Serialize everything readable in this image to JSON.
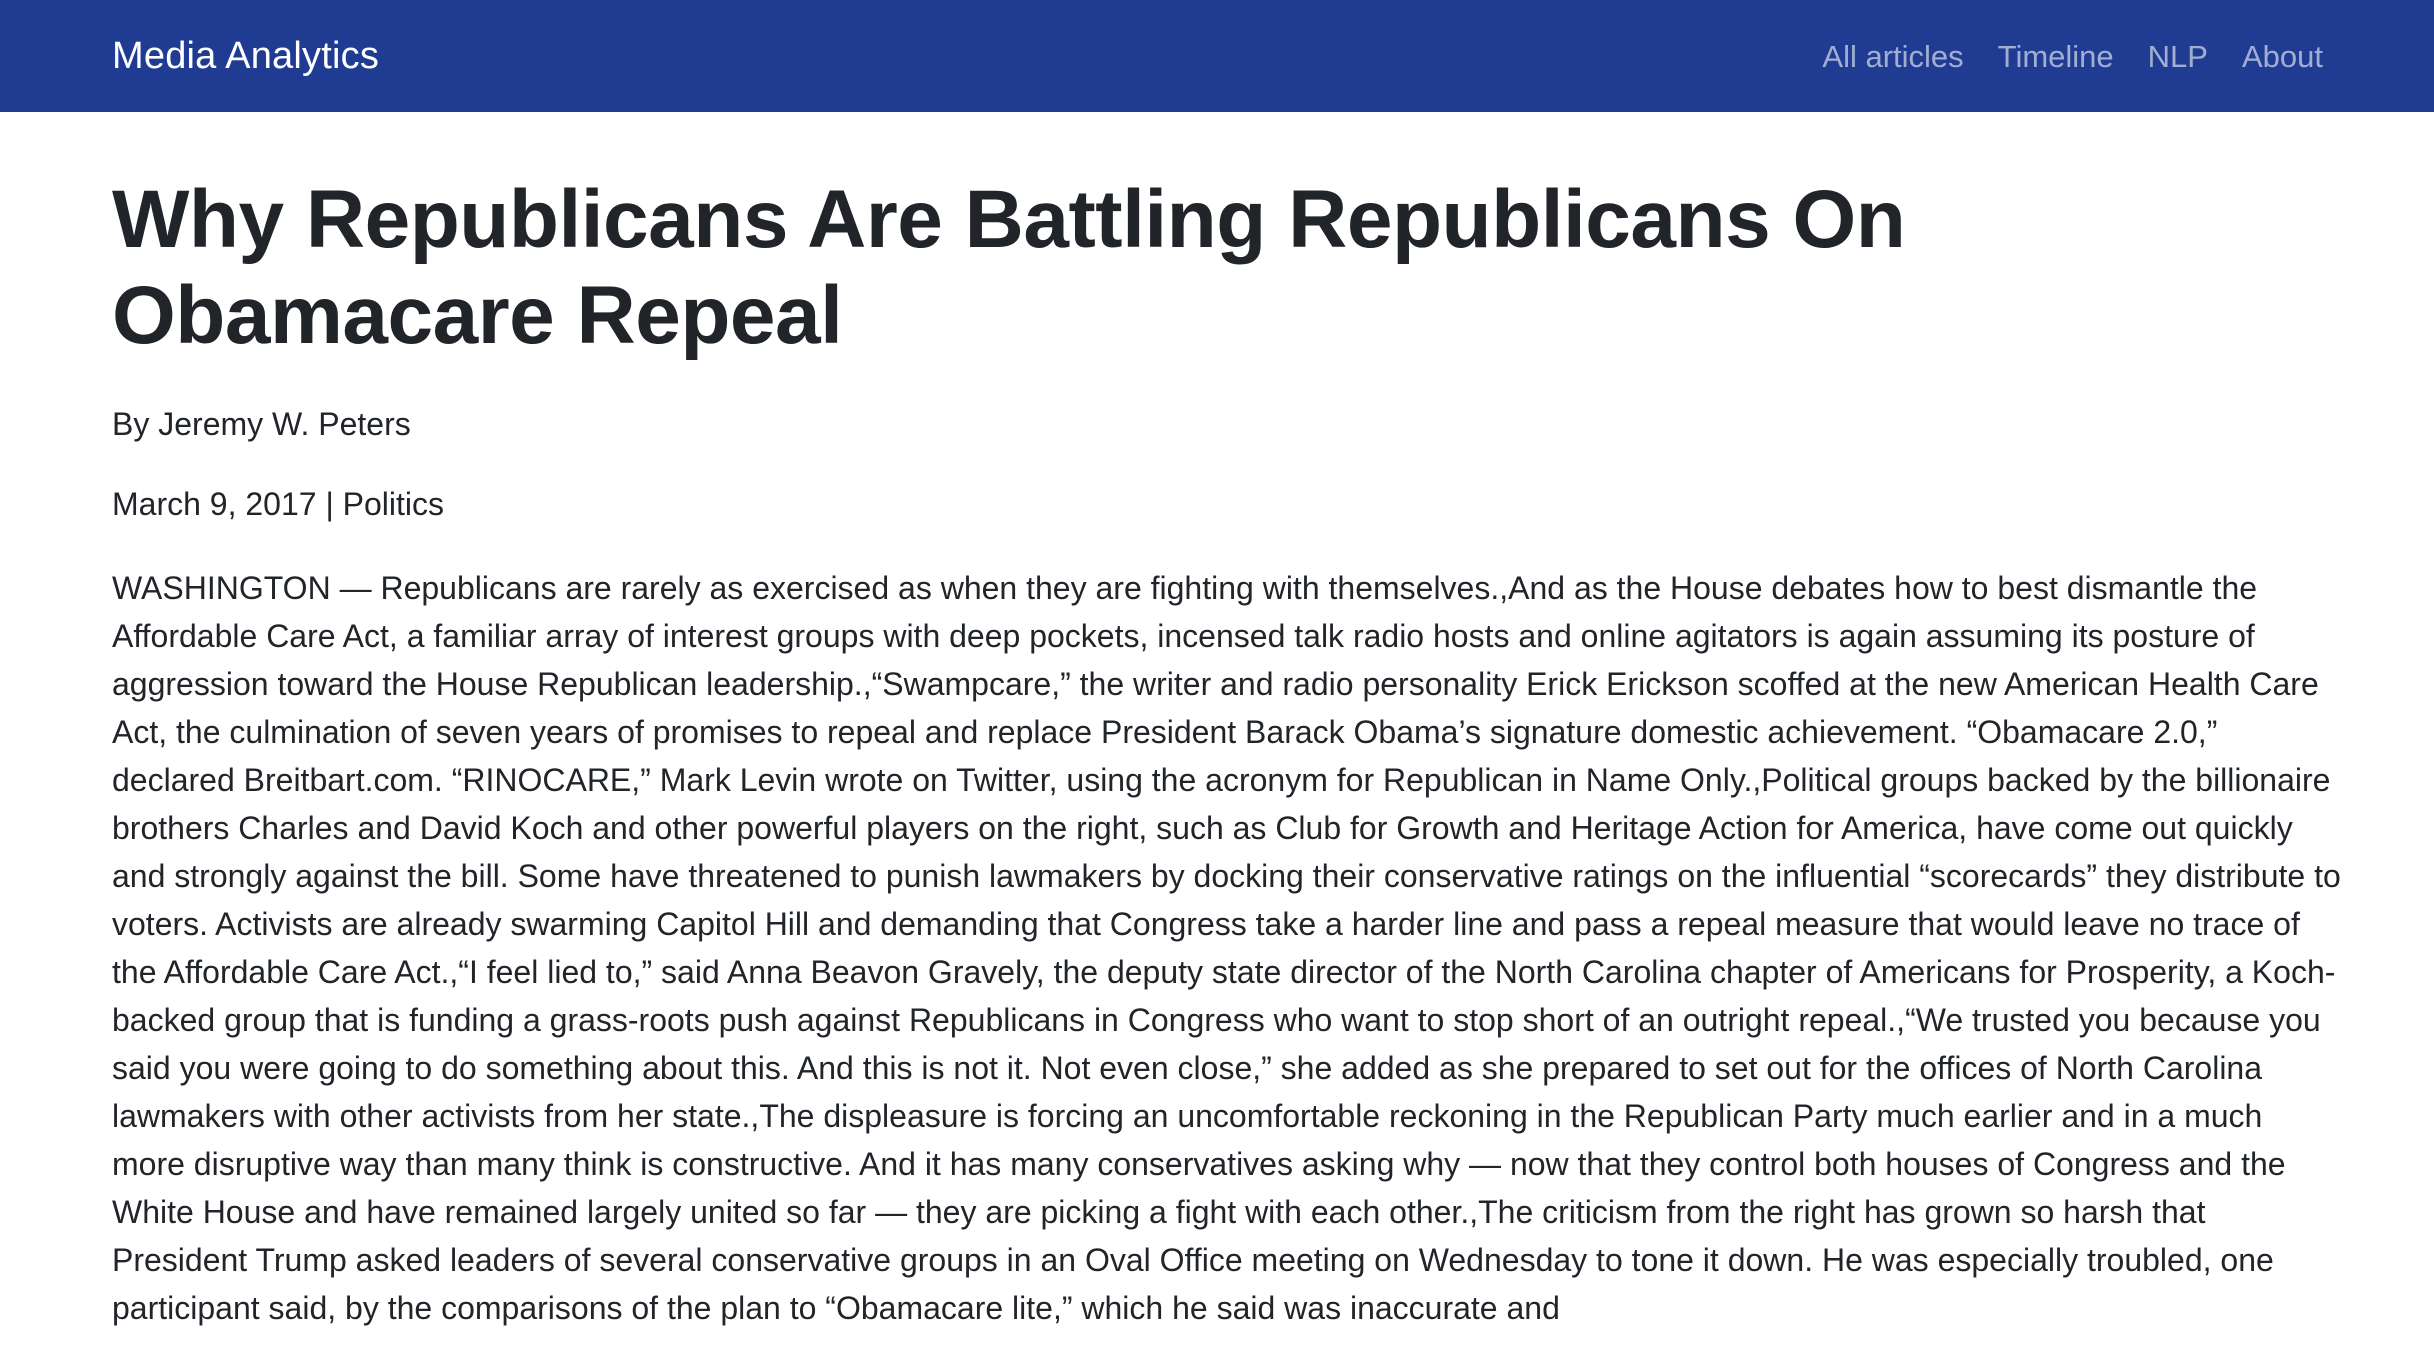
{
  "navbar": {
    "brand": "Media Analytics",
    "links": [
      "All articles",
      "Timeline",
      "NLP",
      "About"
    ]
  },
  "article": {
    "title": "Why Republicans Are Battling Republicans On Obamacare Repeal",
    "byline": "By Jeremy W. Peters",
    "date": "March 9, 2017",
    "separator": "|",
    "section": "Politics",
    "body": "WASHINGTON — Republicans are rarely as exercised as when they are fighting with themselves.,And as the House debates how to best dismantle the Affordable Care Act, a familiar array of interest groups with deep pockets, incensed talk radio hosts and online agitators is again assuming its posture of aggression toward the House Republican leadership.,“Swampcare,” the writer and radio personality Erick Erickson scoffed at the new American Health Care Act, the culmination of seven years of promises to repeal and replace President Barack Obama’s signature domestic achievement. “Obamacare 2.0,” declared Breitbart.com. “RINOCARE,” Mark Levin wrote on Twitter, using the acronym for Republican in Name Only.,Political groups backed by the billionaire brothers Charles and David Koch and other powerful players on the right, such as Club for Growth and Heritage Action for America, have come out quickly and strongly against the bill. Some have threatened to punish lawmakers by docking their conservative ratings on the influential “scorecards” they distribute to voters. Activists are already swarming Capitol Hill and demanding that Congress take a harder line and pass a repeal measure that would leave no trace of the Affordable Care Act.,“I feel lied to,” said Anna Beavon Gravely, the deputy state director of the North Carolina chapter of Americans for Prosperity, a Koch-backed group that is funding a grass-roots push against Republicans in Congress who want to stop short of an outright repeal.,“We trusted you because you said you were going to do something about this. And this is not it. Not even close,” she added as she prepared to set out for the offices of North Carolina lawmakers with other activists from her state.,The displeasure is forcing an uncomfortable reckoning in the Republican Party much earlier and in a much more disruptive way than many think is constructive. And it has many conservatives asking why — now that they control both houses of Congress and the White House and have remained largely united so far — they are picking a fight with each other.,The criticism from the right has grown so harsh that President Trump asked leaders of several conservative groups in an Oval Office meeting on Wednesday to tone it down. He was especially troubled, one participant said, by the comparisons of the plan to “Obamacare lite,” which he said was inaccurate and"
  }
}
